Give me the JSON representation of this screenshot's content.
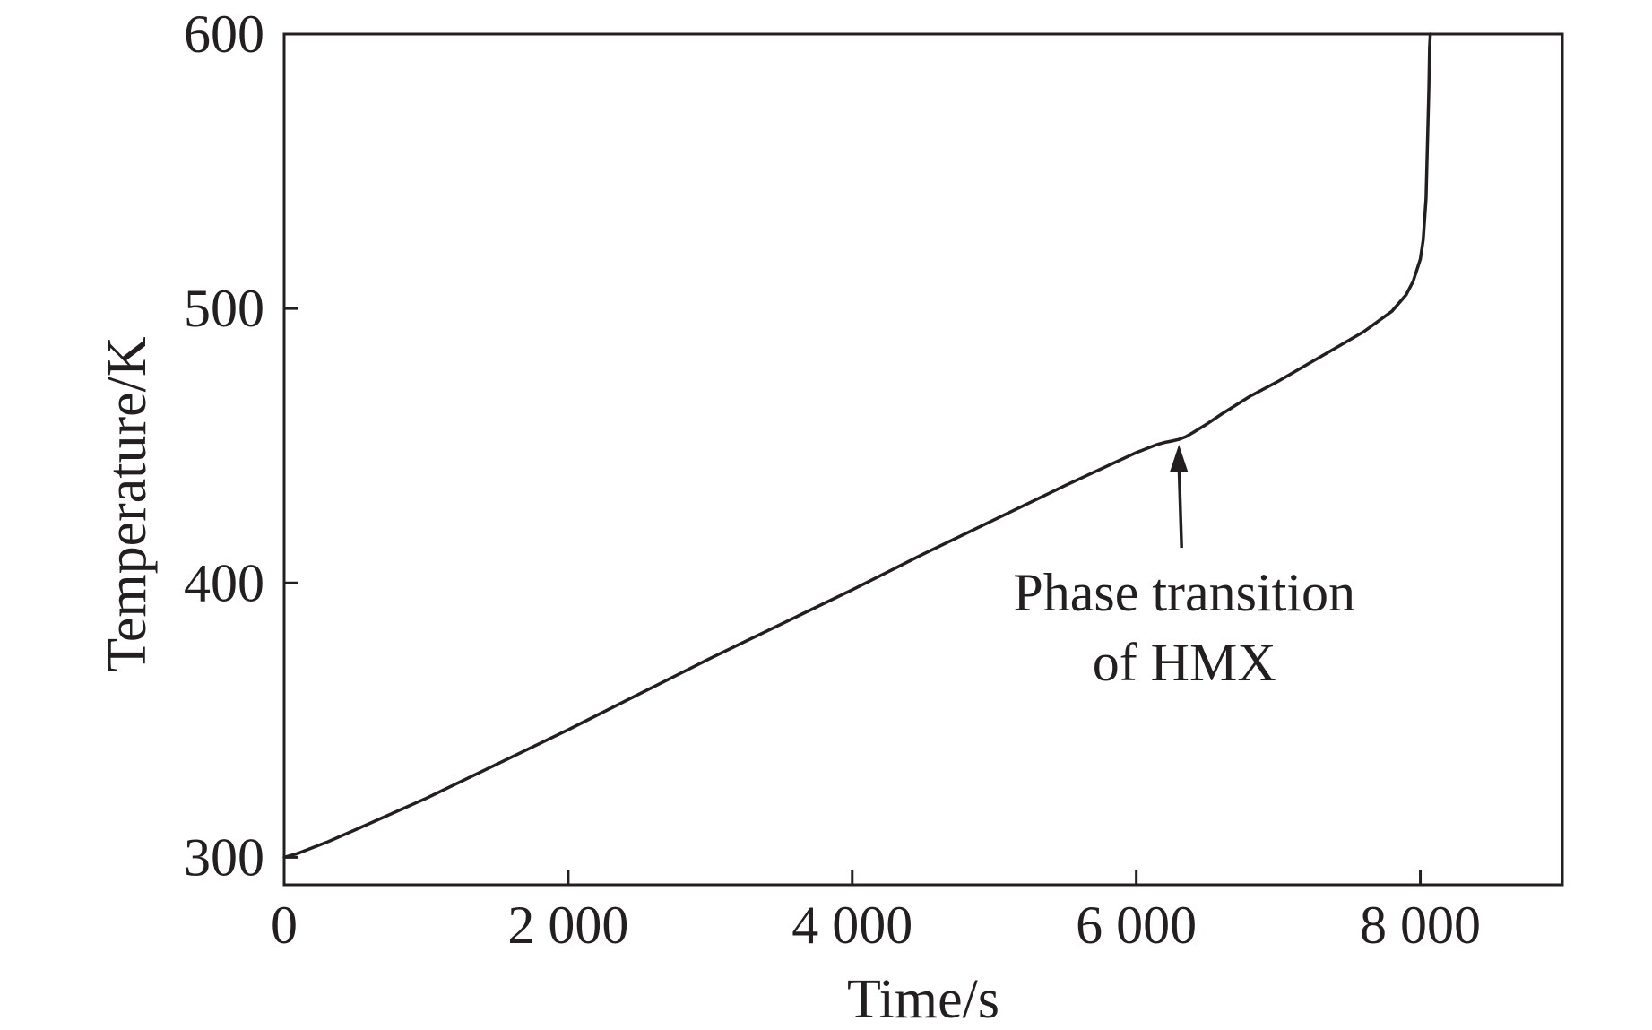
{
  "chart_data": {
    "type": "line",
    "title": "",
    "xlabel": "Time/s",
    "ylabel": "Temperature/K",
    "xlim": [
      0,
      9000
    ],
    "ylim": [
      290,
      600
    ],
    "xticks": [
      0,
      2000,
      4000,
      6000,
      8000
    ],
    "xtick_labels": [
      "0",
      "2 000",
      "4 000",
      "6 000",
      "8 000"
    ],
    "yticks": [
      300,
      400,
      500,
      600
    ],
    "ytick_labels": [
      "300",
      "400",
      "500",
      "600"
    ],
    "grid": false,
    "legend": "none",
    "series": [
      {
        "color": "#231f20",
        "x": [
          0,
          100,
          300,
          500,
          1000,
          1500,
          2000,
          2500,
          3000,
          3500,
          4000,
          4500,
          5000,
          5500,
          6000,
          6150,
          6200,
          6250,
          6300,
          6350,
          6400,
          6500,
          6600,
          6800,
          7000,
          7200,
          7400,
          7600,
          7800,
          7900,
          7950,
          8000,
          8020,
          8040,
          8050,
          8060,
          8065,
          8070
        ],
        "y": [
          300,
          301.5,
          305.5,
          310,
          321.5,
          334,
          346.5,
          359.5,
          372.5,
          385,
          397.5,
          410.5,
          423,
          435.5,
          447.5,
          450.5,
          451.2,
          451.7,
          452.3,
          453.3,
          454.8,
          458,
          461.5,
          468,
          473.5,
          479.5,
          485.5,
          491.5,
          499,
          505,
          510,
          518,
          525,
          540,
          560,
          580,
          595,
          600
        ]
      }
    ],
    "annotations": [
      {
        "text_lines": [
          "Phase transition",
          "of HMX"
        ],
        "arrow_to": [
          6300,
          453
        ]
      }
    ]
  }
}
